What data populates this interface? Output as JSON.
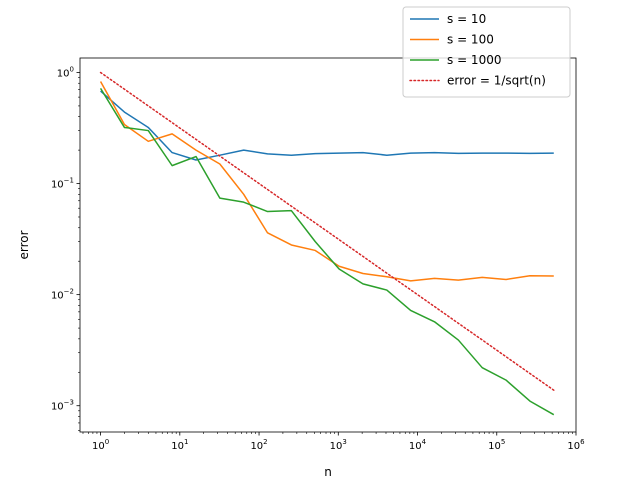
{
  "chart_data": {
    "type": "line",
    "title": "",
    "xlabel": "n",
    "ylabel": "error",
    "xscale": "log",
    "yscale": "log",
    "xlim": [
      0.55,
      1000000
    ],
    "ylim": [
      0.00058,
      1.35
    ],
    "grid": false,
    "legend_position": "top-right",
    "x_ticks": [
      {
        "value": 1,
        "base": "10",
        "exp": "0"
      },
      {
        "value": 10,
        "base": "10",
        "exp": "1"
      },
      {
        "value": 100,
        "base": "10",
        "exp": "2"
      },
      {
        "value": 1000,
        "base": "10",
        "exp": "3"
      },
      {
        "value": 10000,
        "base": "10",
        "exp": "4"
      },
      {
        "value": 100000,
        "base": "10",
        "exp": "5"
      },
      {
        "value": 1000000,
        "base": "10",
        "exp": "6"
      }
    ],
    "y_ticks": [
      {
        "value": 0.001,
        "base": "10",
        "exp": "−3"
      },
      {
        "value": 0.01,
        "base": "10",
        "exp": "−2"
      },
      {
        "value": 0.1,
        "base": "10",
        "exp": "−1"
      },
      {
        "value": 1,
        "base": "10",
        "exp": "0"
      }
    ],
    "x": [
      1,
      2,
      4,
      8,
      16,
      32,
      64,
      128,
      256,
      512,
      1024,
      2048,
      4096,
      8192,
      16384,
      32768,
      65536,
      131072,
      262144,
      524288
    ],
    "series": [
      {
        "name": "s = 10",
        "color": "#1f77b4",
        "style": "solid",
        "values": [
          0.68,
          0.44,
          0.32,
          0.19,
          0.163,
          0.18,
          0.2,
          0.185,
          0.18,
          0.186,
          0.188,
          0.19,
          0.18,
          0.188,
          0.19,
          0.187,
          0.188,
          0.188,
          0.187,
          0.188
        ]
      },
      {
        "name": "s = 100",
        "color": "#ff7f0e",
        "style": "solid",
        "values": [
          0.83,
          0.34,
          0.24,
          0.28,
          0.2,
          0.15,
          0.08,
          0.036,
          0.028,
          0.025,
          0.018,
          0.0155,
          0.0145,
          0.0133,
          0.014,
          0.0135,
          0.0143,
          0.0137,
          0.0148,
          0.0147
        ]
      },
      {
        "name": "s = 1000",
        "color": "#2ca02c",
        "style": "solid",
        "values": [
          0.72,
          0.32,
          0.3,
          0.145,
          0.175,
          0.074,
          0.068,
          0.056,
          0.057,
          0.03,
          0.017,
          0.0125,
          0.011,
          0.0072,
          0.0057,
          0.0039,
          0.0022,
          0.0017,
          0.0011,
          0.00083
        ]
      },
      {
        "name": "error = 1/sqrt(n)",
        "color": "#d62728",
        "style": "dotted",
        "values": [
          1.0,
          0.7071,
          0.5,
          0.3536,
          0.25,
          0.1768,
          0.125,
          0.0884,
          0.0625,
          0.0442,
          0.03125,
          0.0221,
          0.0156,
          0.01105,
          0.00781,
          0.00552,
          0.00391,
          0.00276,
          0.00195,
          0.00138
        ]
      }
    ]
  }
}
